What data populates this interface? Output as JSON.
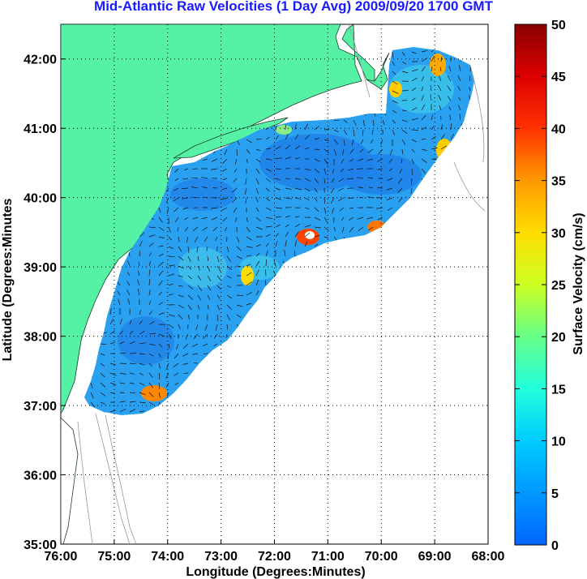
{
  "title": "Mid-Atlantic Raw Velocities (1 Day Avg) 2009/09/20 1700 GMT",
  "xlabel": "Longitude (Degrees:Minutes)",
  "ylabel": "Latitude (Degrees:Minutes",
  "colorbar": {
    "label": "Surface Velocity (cm/s)",
    "min": 0,
    "max": 50,
    "ticks": [
      "0",
      "5",
      "10",
      "15",
      "20",
      "25",
      "30",
      "35",
      "40",
      "45",
      "50"
    ]
  },
  "x_ticks": [
    "76:00",
    "75:00",
    "74:00",
    "73:00",
    "72:00",
    "71:00",
    "70:00",
    "69:00",
    "68:00"
  ],
  "y_ticks": [
    "35:00",
    "36:00",
    "37:00",
    "38:00",
    "39:00",
    "40:00",
    "41:00",
    "42:00"
  ],
  "map_extent": {
    "lon": [
      -76,
      -68
    ],
    "lat": [
      35,
      42.5
    ]
  },
  "colors": {
    "land": "#55f2a6",
    "title": "#1a1aff",
    "field_base": "#2aa0f0"
  }
}
